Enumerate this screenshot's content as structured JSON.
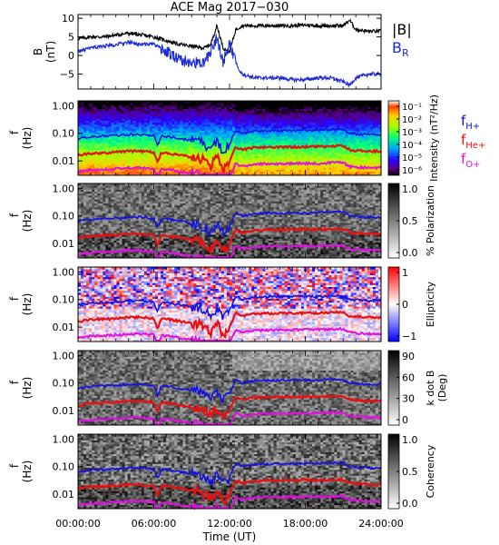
{
  "title": "ACE Mag 2017−030",
  "colors": {
    "B_total": "#000000",
    "B_R": "#1a2ad6",
    "fH": "#1010e8",
    "fHe": "#e81010",
    "fO": "#e010e0"
  },
  "chart_data": [
    {
      "type": "line",
      "panel": "magnetic field",
      "ylabel": [
        "B",
        "(nT)"
      ],
      "ylim": [
        -9,
        11
      ],
      "yticks": [
        10,
        5,
        0,
        -5
      ],
      "legend": [
        "|B|",
        "B_R"
      ],
      "legend_main": [
        "|B|",
        "B"
      ],
      "legend_sub": [
        "",
        "R"
      ],
      "x_hours": [
        0,
        1,
        2,
        3,
        4,
        5,
        6,
        7,
        8,
        9,
        10,
        10.5,
        11,
        11.5,
        12,
        12.5,
        13,
        14,
        15,
        16,
        17,
        18,
        19,
        20,
        21,
        21.5,
        22,
        23,
        24
      ],
      "series": [
        {
          "name": "|B|",
          "values": [
            4.5,
            5,
            5,
            5.5,
            6,
            5.5,
            5,
            4,
            3,
            2.5,
            2,
            3,
            8,
            2,
            1,
            7,
            8,
            8,
            8,
            8,
            8,
            8.2,
            8,
            8,
            8,
            9.5,
            7,
            6.5,
            6.5
          ]
        },
        {
          "name": "B_R",
          "values": [
            1,
            2,
            2.5,
            3,
            3.5,
            3,
            3,
            1,
            -1,
            -2,
            -2,
            1,
            5,
            -2,
            3,
            -2,
            -5,
            -6,
            -6,
            -6,
            -6.5,
            -6.5,
            -6,
            -6,
            -7,
            -8,
            -6,
            -5,
            -5
          ]
        }
      ]
    },
    {
      "type": "heatmap",
      "panel": "power spectral density",
      "ylabel": [
        "f",
        "(Hz)"
      ],
      "yticks": [
        "1.00",
        "0.10",
        "0.01"
      ],
      "colorbar_label": "Intensity (nT²/Hz)",
      "colorbar_ticks": [
        "10⁻¹",
        "10⁻²",
        "10⁻³",
        "10⁻⁴",
        "10⁻⁵",
        "10⁻⁶"
      ],
      "colorscale": "rainbow",
      "legend": [
        "f_H+",
        "f_He+",
        "f_O+"
      ],
      "legend_main": [
        "f",
        "f",
        "f"
      ],
      "legend_sub": [
        "H+",
        "He+",
        "O+"
      ]
    },
    {
      "type": "heatmap",
      "panel": "polarization",
      "ylabel": [
        "f",
        "(Hz)"
      ],
      "yticks": [
        "1.00",
        "0.10",
        "0.01"
      ],
      "colorbar_label": "% Polarization",
      "colorbar_ticks": [
        "1.0",
        "0.5",
        "0.0"
      ],
      "colorscale": "gray"
    },
    {
      "type": "heatmap",
      "panel": "ellipticity",
      "ylabel": [
        "f",
        "(Hz)"
      ],
      "yticks": [
        "1.00",
        "0.10",
        "0.01"
      ],
      "colorbar_label": "Ellipticity",
      "colorbar_ticks": [
        "1",
        "0",
        "−1"
      ],
      "colorscale": "blue-white-red"
    },
    {
      "type": "heatmap",
      "panel": "wave normal angle",
      "ylabel": [
        "f",
        "(Hz)"
      ],
      "yticks": [
        "1.00",
        "0.10",
        "0.01"
      ],
      "colorbar_label": [
        "k dot B",
        "(Deg)"
      ],
      "colorbar_ticks": [
        "90",
        "60",
        "30",
        "0"
      ],
      "colorscale": "gray"
    },
    {
      "type": "heatmap",
      "panel": "coherency",
      "ylabel": [
        "f",
        "(Hz)"
      ],
      "yticks": [
        "1.00",
        "0.10",
        "0.01"
      ],
      "colorbar_label": "Coherency",
      "colorbar_ticks": [
        "1.0",
        "0.5",
        "0.0"
      ],
      "colorscale": "gray"
    }
  ],
  "gyrofrequency_hz": {
    "x_hours": [
      0,
      1,
      2,
      3,
      4,
      5,
      6,
      6.3,
      6.6,
      7,
      8,
      9,
      9.5,
      10,
      10.5,
      11,
      11.5,
      12,
      12.5,
      13,
      14,
      15,
      16,
      17,
      18,
      19,
      20,
      21,
      21.5,
      22,
      23,
      24
    ],
    "fH": [
      0.063,
      0.075,
      0.078,
      0.082,
      0.09,
      0.09,
      0.082,
      0.035,
      0.08,
      0.078,
      0.065,
      0.055,
      0.05,
      0.04,
      0.025,
      0.05,
      0.022,
      0.04,
      0.13,
      0.1,
      0.12,
      0.125,
      0.125,
      0.128,
      0.13,
      0.13,
      0.135,
      0.138,
      0.1,
      0.095,
      0.09,
      0.09
    ]
  },
  "xaxis": {
    "label": "Time (UT)",
    "ticks": [
      "00:00:00",
      "06:00:00",
      "12:00:00",
      "18:00:00",
      "24:00:00"
    ],
    "tick_hours": [
      0,
      6,
      12,
      18,
      24
    ],
    "range_hours": [
      0,
      24
    ]
  }
}
